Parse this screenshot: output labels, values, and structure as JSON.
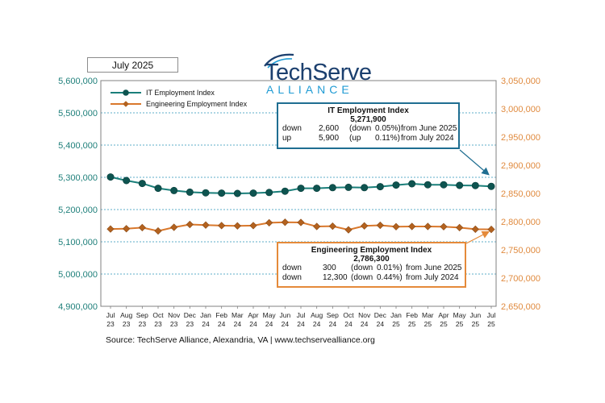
{
  "date_label": "July 2025",
  "logo": {
    "word": "TechServe",
    "sub": "ALLIANCE"
  },
  "source": "Source: TechServe Alliance, Alexandria, VA | www.techservealliance.org",
  "colors": {
    "it": "#1a7f7a",
    "eng": "#d9782c",
    "grid": "#2a93b8",
    "left_axis": "#1e7f7a",
    "right_axis": "#e08a3e"
  },
  "it_box": {
    "title": "IT Employment Index",
    "value": "5,271,900",
    "rows": [
      {
        "dir": "down",
        "amt": "2,600",
        "pct_dir": "(down",
        "pct": "0.05%)",
        "period": "from June 2025"
      },
      {
        "dir": "up",
        "amt": "5,900",
        "pct_dir": "(up",
        "pct": "0.11%)",
        "period": "from July 2024"
      }
    ]
  },
  "eng_box": {
    "title": "Engineering Employment Index",
    "value": "2,786,300",
    "rows": [
      {
        "dir": "down",
        "amt": "300",
        "pct_dir": "(down",
        "pct": "0.01%)",
        "period": "from June 2025"
      },
      {
        "dir": "down",
        "amt": "12,300",
        "pct_dir": "(down",
        "pct": "0.44%)",
        "period": "from July 2024"
      }
    ]
  },
  "chart_data": {
    "type": "line",
    "categories": [
      "Jul 23",
      "Aug 23",
      "Sep 23",
      "Oct 23",
      "Nov 23",
      "Dec 23",
      "Jan 24",
      "Feb 24",
      "Mar 24",
      "Apr 24",
      "May 24",
      "Jun 24",
      "Jul 24",
      "Aug 24",
      "Sep 24",
      "Oct 24",
      "Nov 24",
      "Dec 24",
      "Jan 25",
      "Feb 25",
      "Mar 25",
      "Apr 25",
      "May 25",
      "Jun 25",
      "Jul 25"
    ],
    "category_lines": [
      [
        "Jul",
        "23"
      ],
      [
        "Aug",
        "23"
      ],
      [
        "Sep",
        "23"
      ],
      [
        "Oct",
        "23"
      ],
      [
        "Nov",
        "23"
      ],
      [
        "Dec",
        "23"
      ],
      [
        "Jan",
        "24"
      ],
      [
        "Feb",
        "24"
      ],
      [
        "Mar",
        "24"
      ],
      [
        "Apr",
        "24"
      ],
      [
        "May",
        "24"
      ],
      [
        "Jun",
        "24"
      ],
      [
        "Jul",
        "24"
      ],
      [
        "Aug",
        "24"
      ],
      [
        "Sep",
        "24"
      ],
      [
        "Oct",
        "24"
      ],
      [
        "Nov",
        "24"
      ],
      [
        "Dec",
        "24"
      ],
      [
        "Jan",
        "25"
      ],
      [
        "Feb",
        "25"
      ],
      [
        "Mar",
        "25"
      ],
      [
        "Apr",
        "25"
      ],
      [
        "May",
        "25"
      ],
      [
        "Jun",
        "25"
      ],
      [
        "Jul",
        "25"
      ]
    ],
    "left_axis": {
      "min": 4900000,
      "max": 5600000,
      "step": 100000,
      "ticks": [
        "4,900,000",
        "5,000,000",
        "5,100,000",
        "5,200,000",
        "5,300,000",
        "5,400,000",
        "5,500,000",
        "5,600,000"
      ]
    },
    "right_axis": {
      "min": 2650000,
      "max": 3050000,
      "step": 50000,
      "ticks": [
        "2,650,000",
        "2,700,000",
        "2,750,000",
        "2,800,000",
        "2,850,000",
        "2,900,000",
        "2,950,000",
        "3,000,000",
        "3,050,000"
      ]
    },
    "series": [
      {
        "name": "IT Employment Index",
        "axis": "left",
        "values": [
          5301000,
          5290000,
          5281000,
          5266000,
          5259000,
          5254000,
          5252000,
          5251000,
          5250000,
          5251000,
          5253000,
          5257000,
          5266000,
          5266000,
          5268000,
          5269000,
          5268000,
          5271000,
          5276000,
          5280000,
          5277000,
          5277000,
          5275000,
          5274500,
          5271900
        ]
      },
      {
        "name": "Engineering Employment Index",
        "axis": "right",
        "values": [
          2787000,
          2787500,
          2789500,
          2783500,
          2790000,
          2795000,
          2794000,
          2793000,
          2792500,
          2793000,
          2798000,
          2799000,
          2798600,
          2791500,
          2792000,
          2785500,
          2792500,
          2793500,
          2791000,
          2791500,
          2791500,
          2791000,
          2789500,
          2786600,
          2786300
        ]
      }
    ],
    "grid": true,
    "legend": "top-left"
  }
}
